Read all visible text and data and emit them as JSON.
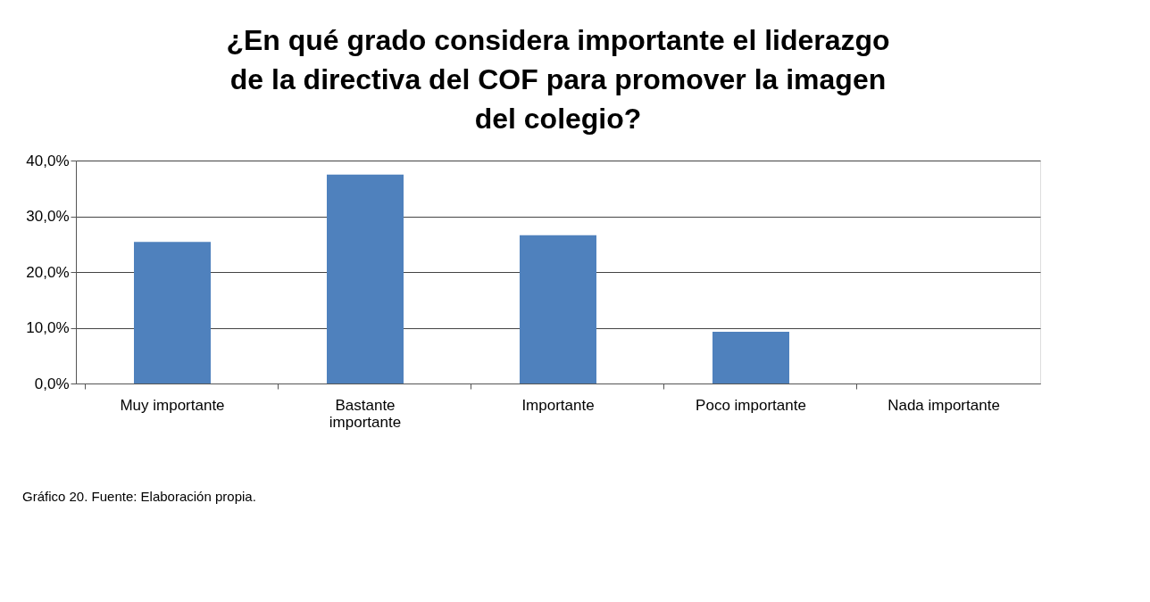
{
  "chart_data": {
    "type": "bar",
    "title": [
      "¿En qué grado considera importante el liderazgo",
      "de la directiva del COF para promover la imagen",
      "del colegio?"
    ],
    "categories": [
      "Muy importante",
      "Bastante importante",
      "Importante",
      "Poco importante",
      "Nada importante"
    ],
    "values": [
      25.4,
      37.5,
      26.6,
      9.3,
      0
    ],
    "color": "#4f81bd",
    "ylim": [
      0,
      40
    ],
    "yticks": [
      {
        "value": 0,
        "label": "0,0%"
      },
      {
        "value": 10,
        "label": "10,0%"
      },
      {
        "value": 20,
        "label": "20,0%"
      },
      {
        "value": 30,
        "label": "30,0%"
      },
      {
        "value": 40,
        "label": "40,0%"
      }
    ],
    "grid": "y",
    "annotations": [
      "Gráfico 20. Fuente:  Elaboración propia."
    ]
  }
}
